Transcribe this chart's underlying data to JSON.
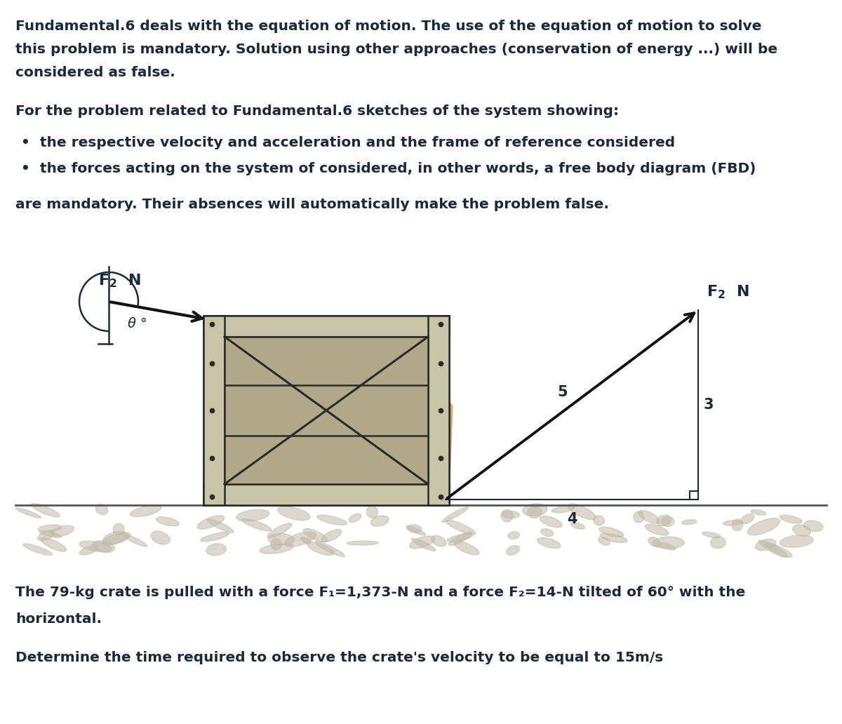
{
  "bg_color": "#ffffff",
  "text_color": "#1a2a3a",
  "title_lines": [
    "Fundamental.6 deals with the equation of motion. The use of the equation of motion to solve",
    "this problem is mandatory. Solution using other approaches (conservation of energy ...) will be",
    "considered as false."
  ],
  "para2": "For the problem related to Fundamental.6 sketches of the system showing:",
  "bullet1": "the respective velocity and acceleration and the frame of reference considered",
  "bullet2": "the forces acting on the system of considered, in other words, a free body diagram (FBD)",
  "para3": "are mandatory. Their absences will automatically make the problem false.",
  "problem_line1": "The 79-kg crate is pulled with a force F₁=1,373-N and a force F₂=14-N tilted of 60° with the",
  "problem_line2": "horizontal.",
  "question": "Determine the time required to observe the crate's velocity to be equal to 15m/s",
  "crate_color": "#c8c4a8",
  "crate_dark": "#b0a888",
  "crate_border": "#2a2a2a",
  "rope_color": "#d4a870",
  "arrow_color": "#111111"
}
